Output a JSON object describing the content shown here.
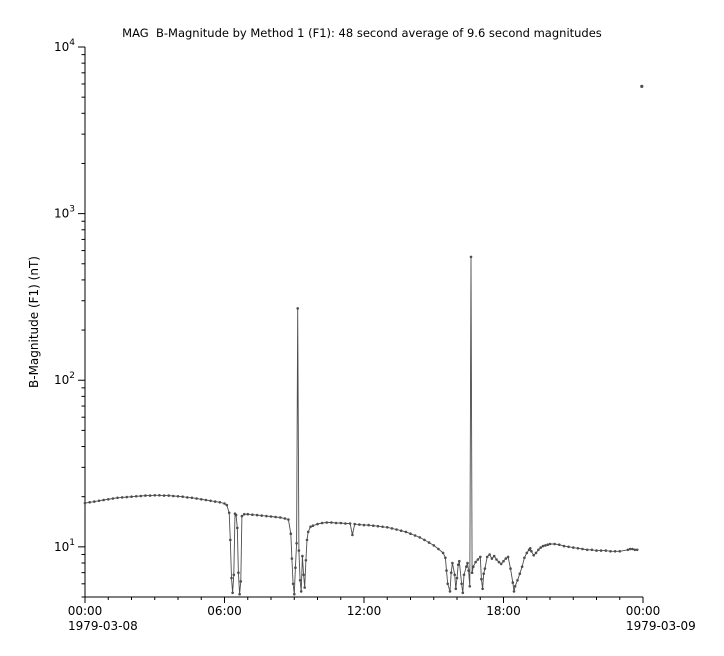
{
  "chart_data": {
    "type": "scatter",
    "title": "MAG  B-Magnitude by Method 1 (F1): 48 second average of 9.6 second magnitudes",
    "ylabel": "B-Magnitude (F1) (nT)",
    "xlabel": "",
    "yscale": "log",
    "xlim": [
      0,
      24
    ],
    "ylim": [
      5,
      10000
    ],
    "grid": false,
    "legend": "none",
    "marker_color": "#4d4d4d",
    "axis_color": "#000000",
    "background": "#ffffff",
    "ytick_base": "10",
    "ytick_exponents": [
      1,
      2,
      3,
      4
    ],
    "xticks": [
      {
        "x": 0,
        "label": "00:00",
        "sub": "1979-03-08"
      },
      {
        "x": 6,
        "label": "06:00"
      },
      {
        "x": 12,
        "label": "12:00"
      },
      {
        "x": 18,
        "label": "18:00"
      },
      {
        "x": 24,
        "label": "00:00",
        "sub": "1979-03-09"
      }
    ],
    "x_units": "hours since 1979-03-08 00:00",
    "y_units": "nT",
    "points": [
      [
        0.0,
        18.3
      ],
      [
        0.2,
        18.5
      ],
      [
        0.4,
        18.7
      ],
      [
        0.6,
        18.9
      ],
      [
        0.8,
        19.1
      ],
      [
        1.0,
        19.3
      ],
      [
        1.2,
        19.5
      ],
      [
        1.4,
        19.7
      ],
      [
        1.6,
        19.8
      ],
      [
        1.8,
        19.9
      ],
      [
        2.0,
        20.0
      ],
      [
        2.2,
        20.1
      ],
      [
        2.4,
        20.2
      ],
      [
        2.6,
        20.3
      ],
      [
        2.8,
        20.3
      ],
      [
        3.0,
        20.4
      ],
      [
        3.2,
        20.4
      ],
      [
        3.4,
        20.3
      ],
      [
        3.6,
        20.3
      ],
      [
        3.8,
        20.2
      ],
      [
        4.0,
        20.1
      ],
      [
        4.2,
        20.0
      ],
      [
        4.4,
        19.8
      ],
      [
        4.6,
        19.7
      ],
      [
        4.8,
        19.5
      ],
      [
        5.0,
        19.3
      ],
      [
        5.2,
        19.1
      ],
      [
        5.4,
        18.9
      ],
      [
        5.6,
        18.7
      ],
      [
        5.8,
        18.5
      ],
      [
        6.0,
        18.2
      ],
      [
        6.1,
        17.8
      ],
      [
        6.2,
        16.0
      ],
      [
        6.25,
        11.0
      ],
      [
        6.3,
        6.5
      ],
      [
        6.35,
        5.3
      ],
      [
        6.4,
        6.8
      ],
      [
        6.45,
        15.8
      ],
      [
        6.5,
        15.5
      ],
      [
        6.55,
        13.0
      ],
      [
        6.6,
        7.0
      ],
      [
        6.65,
        5.2
      ],
      [
        6.7,
        6.2
      ],
      [
        6.75,
        15.3
      ],
      [
        6.85,
        15.7
      ],
      [
        7.0,
        15.7
      ],
      [
        7.2,
        15.6
      ],
      [
        7.4,
        15.5
      ],
      [
        7.6,
        15.4
      ],
      [
        7.8,
        15.3
      ],
      [
        8.0,
        15.2
      ],
      [
        8.2,
        15.1
      ],
      [
        8.4,
        15.0
      ],
      [
        8.6,
        14.8
      ],
      [
        8.75,
        14.6
      ],
      [
        8.85,
        12.0
      ],
      [
        8.9,
        8.5
      ],
      [
        8.95,
        6.0
      ],
      [
        9.0,
        5.2
      ],
      [
        9.05,
        7.5
      ],
      [
        9.1,
        10.5
      ],
      [
        9.15,
        270
      ],
      [
        9.2,
        9.5
      ],
      [
        9.25,
        6.3
      ],
      [
        9.3,
        5.4
      ],
      [
        9.35,
        8.8
      ],
      [
        9.4,
        6.8
      ],
      [
        9.45,
        5.7
      ],
      [
        9.5,
        8.3
      ],
      [
        9.55,
        11.0
      ],
      [
        9.6,
        12.3
      ],
      [
        9.7,
        13.2
      ],
      [
        9.8,
        13.4
      ],
      [
        10.0,
        13.7
      ],
      [
        10.2,
        13.9
      ],
      [
        10.4,
        14.0
      ],
      [
        10.6,
        14.0
      ],
      [
        10.8,
        13.9
      ],
      [
        11.0,
        13.9
      ],
      [
        11.2,
        13.8
      ],
      [
        11.4,
        13.8
      ],
      [
        11.5,
        11.8
      ],
      [
        11.6,
        13.7
      ],
      [
        11.8,
        13.6
      ],
      [
        12.0,
        13.5
      ],
      [
        12.2,
        13.5
      ],
      [
        12.4,
        13.4
      ],
      [
        12.6,
        13.3
      ],
      [
        12.8,
        13.2
      ],
      [
        13.0,
        13.1
      ],
      [
        13.2,
        12.9
      ],
      [
        13.4,
        12.7
      ],
      [
        13.6,
        12.5
      ],
      [
        13.8,
        12.3
      ],
      [
        14.0,
        12.0
      ],
      [
        14.2,
        11.7
      ],
      [
        14.4,
        11.4
      ],
      [
        14.6,
        11.0
      ],
      [
        14.8,
        10.6
      ],
      [
        15.0,
        10.2
      ],
      [
        15.2,
        9.7
      ],
      [
        15.4,
        9.2
      ],
      [
        15.5,
        8.6
      ],
      [
        15.55,
        7.2
      ],
      [
        15.6,
        6.0
      ],
      [
        15.7,
        5.4
      ],
      [
        15.75,
        7.0
      ],
      [
        15.8,
        8.0
      ],
      [
        15.9,
        6.8
      ],
      [
        15.95,
        5.6
      ],
      [
        16.0,
        6.5
      ],
      [
        16.05,
        7.8
      ],
      [
        16.1,
        8.2
      ],
      [
        16.2,
        6.0
      ],
      [
        16.25,
        5.3
      ],
      [
        16.3,
        6.8
      ],
      [
        16.4,
        7.6
      ],
      [
        16.45,
        8.0
      ],
      [
        16.5,
        7.2
      ],
      [
        16.55,
        5.8
      ],
      [
        16.6,
        550
      ],
      [
        16.65,
        7.0
      ],
      [
        16.7,
        7.6
      ],
      [
        16.8,
        8.1
      ],
      [
        16.9,
        8.4
      ],
      [
        17.0,
        8.7
      ],
      [
        17.05,
        6.4
      ],
      [
        17.1,
        5.6
      ],
      [
        17.15,
        6.9
      ],
      [
        17.2,
        7.4
      ],
      [
        17.3,
        8.7
      ],
      [
        17.4,
        9.0
      ],
      [
        17.5,
        8.5
      ],
      [
        17.6,
        8.8
      ],
      [
        17.7,
        8.4
      ],
      [
        17.8,
        8.1
      ],
      [
        17.9,
        7.9
      ],
      [
        18.0,
        8.2
      ],
      [
        18.1,
        8.5
      ],
      [
        18.2,
        8.7
      ],
      [
        18.3,
        7.4
      ],
      [
        18.4,
        6.1
      ],
      [
        18.45,
        5.4
      ],
      [
        18.5,
        5.8
      ],
      [
        18.6,
        6.3
      ],
      [
        18.7,
        6.9
      ],
      [
        18.8,
        7.6
      ],
      [
        18.9,
        8.6
      ],
      [
        19.0,
        9.2
      ],
      [
        19.1,
        9.6
      ],
      [
        19.15,
        9.8
      ],
      [
        19.2,
        9.4
      ],
      [
        19.3,
        8.9
      ],
      [
        19.4,
        9.2
      ],
      [
        19.5,
        9.6
      ],
      [
        19.6,
        9.9
      ],
      [
        19.7,
        10.1
      ],
      [
        19.8,
        10.2
      ],
      [
        19.9,
        10.3
      ],
      [
        20.0,
        10.4
      ],
      [
        20.2,
        10.4
      ],
      [
        20.4,
        10.3
      ],
      [
        20.6,
        10.1
      ],
      [
        20.8,
        10.0
      ],
      [
        21.0,
        9.9
      ],
      [
        21.2,
        9.8
      ],
      [
        21.4,
        9.7
      ],
      [
        21.6,
        9.6
      ],
      [
        21.8,
        9.6
      ],
      [
        22.0,
        9.5
      ],
      [
        22.2,
        9.5
      ],
      [
        22.4,
        9.5
      ],
      [
        22.6,
        9.4
      ],
      [
        22.8,
        9.4
      ],
      [
        23.0,
        9.4
      ],
      [
        23.35,
        9.6
      ],
      [
        23.45,
        9.7
      ],
      [
        23.55,
        9.7
      ],
      [
        23.65,
        9.6
      ],
      [
        23.75,
        9.6
      ]
    ],
    "isolated_points": [
      {
        "x": 23.95,
        "y": 5800
      }
    ]
  }
}
